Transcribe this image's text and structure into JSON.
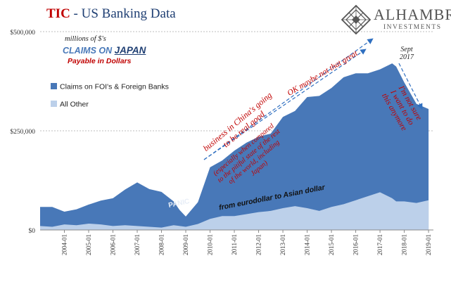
{
  "title": {
    "highlight": "TIC",
    "rest": " - US Banking Data"
  },
  "logo": {
    "name": "ALHAMBRA",
    "subtitle": "INVESTMENTS",
    "icon": "diamond-lattice-icon"
  },
  "colors": {
    "series_foi": "#4878b8",
    "series_other": "#bcd0ea",
    "annotation_red": "#c00000",
    "annotation_arrow": "#2f6fc0",
    "gridline": "#a6a6a6",
    "title_blue": "#1f3f73"
  },
  "header_notes": {
    "units": "millions of $'s",
    "claims_on": "CLAIMS ON ",
    "country": "JAPAN",
    "payable": "Payable in Dollars"
  },
  "annotations": {
    "china": "business in China's going\nto be real good",
    "compared": "(especially when compared\nto the pitiful state of the rest\nof the world, including\nJapan)",
    "ok": "OK maybe not that great",
    "sept": "Sept\n2017",
    "not_sure": "I'm not sure\nI want to do\nthis anymore",
    "panic": "PANIC",
    "eurodollar": "from eurodollar to Asian dollar"
  },
  "chart_data": {
    "type": "area",
    "stacked": true,
    "x": [
      "2003-01",
      "2003-07",
      "2004-01",
      "2004-07",
      "2005-01",
      "2005-07",
      "2006-01",
      "2006-07",
      "2007-01",
      "2007-07",
      "2008-01",
      "2008-07",
      "2008-10",
      "2009-01",
      "2009-07",
      "2010-01",
      "2010-07",
      "2011-01",
      "2011-07",
      "2012-01",
      "2012-07",
      "2013-01",
      "2013-07",
      "2014-01",
      "2014-07",
      "2015-01",
      "2015-07",
      "2016-01",
      "2016-07",
      "2017-01",
      "2017-07",
      "2017-09",
      "2018-01",
      "2018-07",
      "2019-01"
    ],
    "series": [
      {
        "name": "All Other",
        "values": [
          10,
          8,
          14,
          12,
          16,
          14,
          10,
          12,
          10,
          8,
          6,
          12,
          10,
          8,
          15,
          28,
          35,
          35,
          40,
          45,
          48,
          55,
          60,
          55,
          48,
          58,
          65,
          75,
          85,
          95,
          80,
          72,
          72,
          68,
          75
        ]
      },
      {
        "name": "Claims on FOI's & Foreign Banks",
        "values": [
          48,
          50,
          32,
          40,
          48,
          60,
          70,
          90,
          110,
          95,
          90,
          60,
          40,
          26,
          55,
          130,
          140,
          165,
          180,
          190,
          195,
          230,
          240,
          280,
          290,
          300,
          320,
          320,
          310,
          310,
          340,
          340,
          300,
          250,
          230
        ]
      }
    ],
    "ylim": [
      0,
      500000
    ],
    "y_unit": 1000,
    "yticks": [
      {
        "label": "$0",
        "value": 0
      },
      {
        "label": "$250,000",
        "value": 250000
      },
      {
        "label": "$500,000",
        "value": 500000
      }
    ],
    "xticks": [
      "2004-01",
      "2005-01",
      "2006-01",
      "2007-01",
      "2008-01",
      "2009-01",
      "2010-01",
      "2011-01",
      "2012-01",
      "2013-01",
      "2014-01",
      "2015-01",
      "2016-01",
      "2017-01",
      "2018-01",
      "2019-01"
    ],
    "legend": [
      {
        "label": "Claims on FOI's & Foreign Banks",
        "color": "#4878b8"
      },
      {
        "label": "All Other",
        "color": "#bcd0ea"
      }
    ],
    "legend_position": "left",
    "grid": true
  }
}
